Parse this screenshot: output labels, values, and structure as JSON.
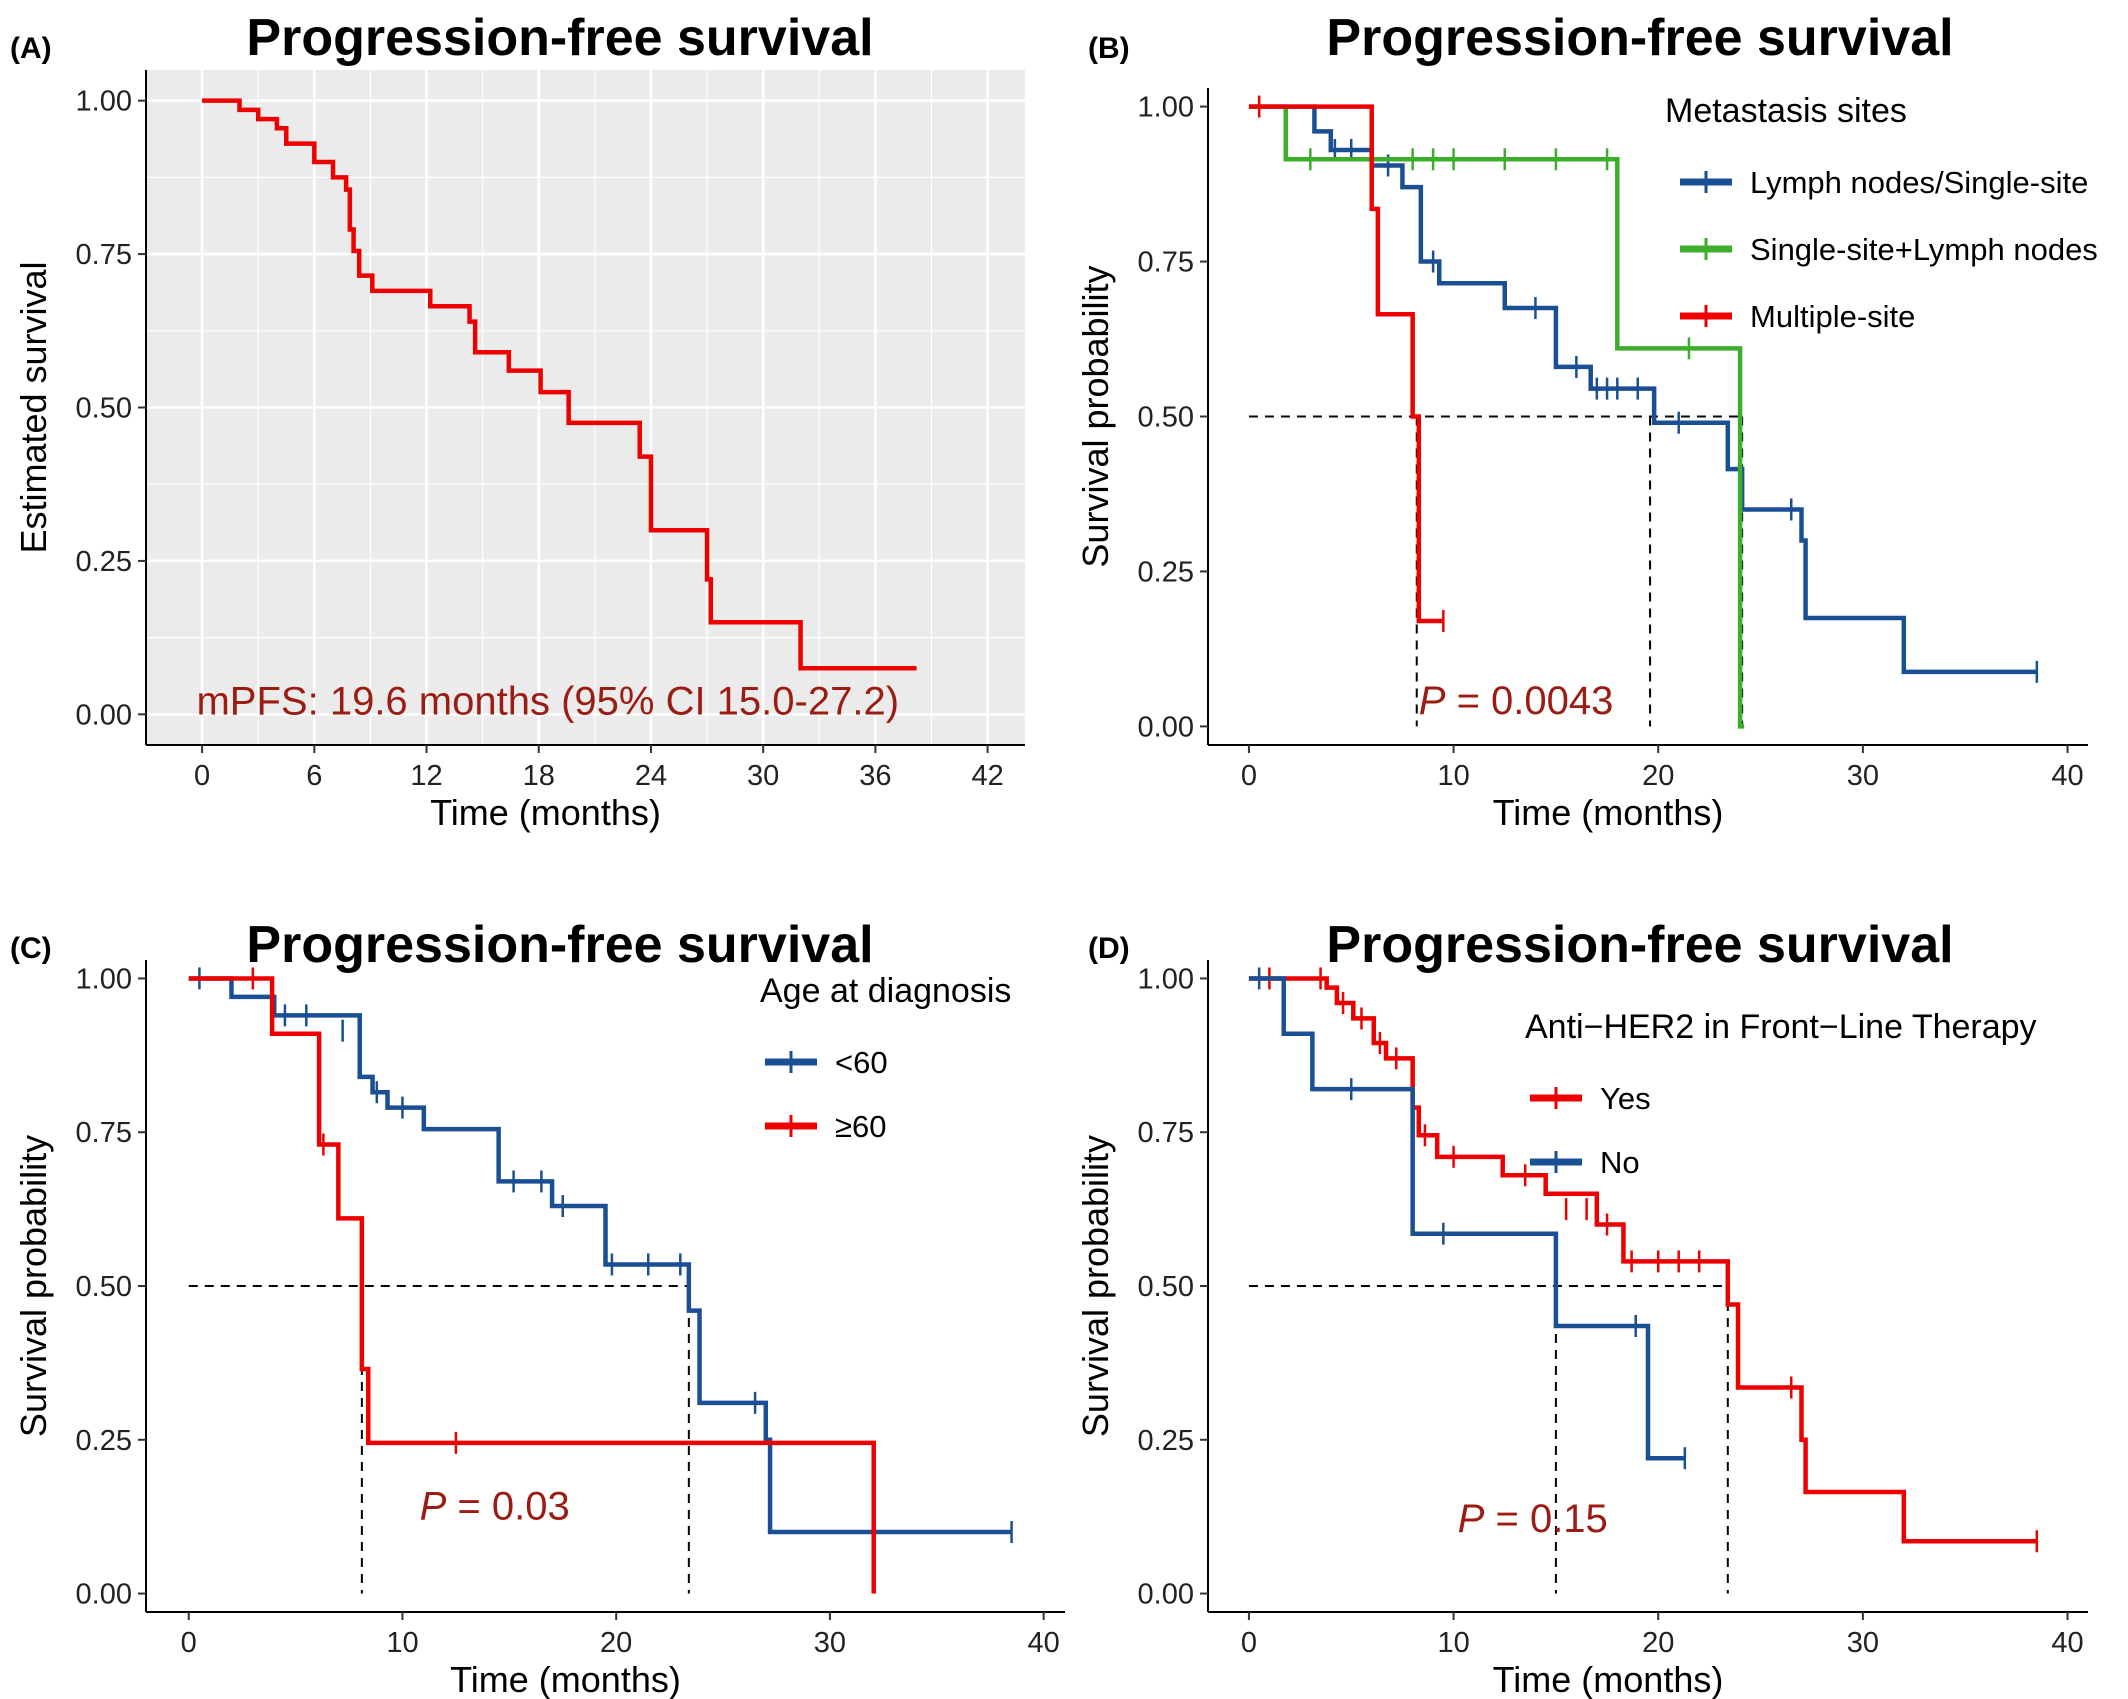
{
  "chart_data": [
    {
      "panel": "(A)",
      "type": "line",
      "title": "Progression-free survival",
      "xlabel": "Time (months)",
      "ylabel": "Estimated survival",
      "xlim": [
        -3,
        44
      ],
      "ylim": [
        -0.05,
        1.05
      ],
      "xticks": [
        0,
        6,
        12,
        18,
        24,
        30,
        36,
        42
      ],
      "xtick_labels": [
        "0",
        "6",
        "12",
        "18",
        "24",
        "30",
        "36",
        "42"
      ],
      "yticks": [
        0,
        0.25,
        0.5,
        0.75,
        1.0
      ],
      "ytick_labels": [
        "0.00",
        "0.25",
        "0.50",
        "0.75",
        "1.00"
      ],
      "grid": true,
      "background": "#ebebeb",
      "annotation": {
        "text": "mPFS: 19.6 months (95% CI 15.0-27.2)",
        "x": -0.3,
        "y": 0.0
      },
      "series": [
        {
          "color": "#ee0000",
          "x": [
            0,
            2,
            3,
            4,
            4.5,
            6,
            7,
            7.7,
            7.9,
            8.1,
            8.4,
            9.1,
            12.2,
            14.3,
            14.6,
            16.4,
            18.1,
            19.6,
            23.4,
            24,
            27,
            27.2,
            32,
            38.2
          ],
          "y": [
            1.0,
            0.985,
            0.97,
            0.955,
            0.93,
            0.9,
            0.875,
            0.855,
            0.79,
            0.755,
            0.715,
            0.69,
            0.665,
            0.64,
            0.59,
            0.56,
            0.525,
            0.475,
            0.42,
            0.3,
            0.22,
            0.15,
            0.075,
            0.075
          ],
          "censor_x": [],
          "censor_y": []
        }
      ]
    },
    {
      "panel": "(B)",
      "type": "line",
      "title": "Progression-free survival",
      "xlabel": "Time (months)",
      "ylabel": "Survival probability",
      "xlim": [
        -2,
        41
      ],
      "ylim": [
        -0.03,
        1.03
      ],
      "xticks": [
        0,
        10,
        20,
        30,
        40
      ],
      "xtick_labels": [
        "0",
        "10",
        "20",
        "30",
        "40"
      ],
      "yticks": [
        0,
        0.25,
        0.5,
        0.75,
        1.0
      ],
      "ytick_labels": [
        "0.00",
        "0.25",
        "0.50",
        "0.75",
        "1.00"
      ],
      "grid": false,
      "legend_title": "Metastasis sites",
      "legend_position": "top-right",
      "annotation": {
        "text_italic": "P",
        "text": " = 0.0043",
        "x": 8.3,
        "y": 0.02
      },
      "median_lines": [
        {
          "x": 8.2,
          "y_from": 0.5,
          "y_to": 0.0
        },
        {
          "x": 19.6,
          "y_from": 0.5,
          "y_to": 0.0
        },
        {
          "x": 24.1,
          "y_from": 0.5,
          "y_to": 0.0
        }
      ],
      "median_hline": {
        "x_from": 0,
        "x_to": 24.1,
        "y": 0.5
      },
      "series": [
        {
          "name": "Lymph nodes/Single-site",
          "color": "#1a4f93",
          "x": [
            0,
            3.2,
            4,
            6,
            7.5,
            8.4,
            9.3,
            12.5,
            15,
            16.7,
            19.8,
            23.4,
            24.1,
            27,
            27.2,
            32,
            38.5
          ],
          "y": [
            1.0,
            0.96,
            0.93,
            0.905,
            0.87,
            0.75,
            0.715,
            0.675,
            0.58,
            0.545,
            0.49,
            0.415,
            0.35,
            0.3,
            0.175,
            0.088,
            0.088
          ],
          "censor_x": [
            4.2,
            5,
            6.8,
            9,
            14,
            16,
            17,
            17.5,
            18,
            19,
            21,
            26.5,
            38.5
          ],
          "censor_y": [
            0.93,
            0.93,
            0.905,
            0.75,
            0.675,
            0.58,
            0.545,
            0.545,
            0.545,
            0.545,
            0.49,
            0.35,
            0.088
          ]
        },
        {
          "name": "Single-site+Lymph nodes",
          "color": "#3dae2b",
          "x": [
            0,
            1.8,
            18,
            24,
            24.2
          ],
          "y": [
            1.0,
            0.915,
            0.61,
            0.0,
            0.0
          ],
          "censor_x": [
            3,
            6,
            8,
            9,
            10,
            12.5,
            15,
            17.5,
            21.5
          ],
          "censor_y": [
            0.915,
            0.915,
            0.915,
            0.915,
            0.915,
            0.915,
            0.915,
            0.915,
            0.61
          ]
        },
        {
          "name": "Multiple-site",
          "color": "#ee0000",
          "x": [
            0,
            6,
            6.3,
            8,
            8.3,
            9.5
          ],
          "y": [
            1.0,
            0.835,
            0.665,
            0.5,
            0.17,
            0.17
          ],
          "censor_x": [
            0.5,
            9.5
          ],
          "censor_y": [
            1.0,
            0.17
          ]
        }
      ]
    },
    {
      "panel": "(C)",
      "type": "line",
      "title": "Progression-free survival",
      "xlabel": "Time (months)",
      "ylabel": "Survival probability",
      "xlim": [
        -2,
        41
      ],
      "ylim": [
        -0.03,
        1.03
      ],
      "xticks": [
        0,
        10,
        20,
        30,
        40
      ],
      "xtick_labels": [
        "0",
        "10",
        "20",
        "30",
        "40"
      ],
      "yticks": [
        0,
        0.25,
        0.5,
        0.75,
        1.0
      ],
      "ytick_labels": [
        "0.00",
        "0.25",
        "0.50",
        "0.75",
        "1.00"
      ],
      "grid": false,
      "legend_title": "Age at diagnosis",
      "legend_position": "top-right",
      "annotation": {
        "text_italic": "P",
        "text": " = 0.03",
        "x": 10.8,
        "y": 0.12
      },
      "median_lines": [
        {
          "x": 8.1,
          "y_from": 0.5,
          "y_to": 0.0
        },
        {
          "x": 23.4,
          "y_from": 0.5,
          "y_to": 0.0
        }
      ],
      "median_hline": {
        "x_from": 0,
        "x_to": 23.4,
        "y": 0.5
      },
      "series": [
        {
          "name": "<60",
          "color": "#1a4f93",
          "x": [
            0,
            2,
            4,
            8,
            8.6,
            9.3,
            11,
            14.5,
            17,
            19.5,
            23.4,
            23.9,
            27,
            27.2,
            38.5
          ],
          "y": [
            1.0,
            0.97,
            0.94,
            0.84,
            0.815,
            0.79,
            0.755,
            0.67,
            0.63,
            0.535,
            0.46,
            0.31,
            0.25,
            0.1,
            0.1
          ],
          "censor_x": [
            0.5,
            4.5,
            5.5,
            7.2,
            8.8,
            10,
            15.2,
            16.5,
            17.5,
            19.8,
            21.5,
            23,
            26.5,
            38.5
          ],
          "censor_y": [
            1.0,
            0.94,
            0.94,
            0.915,
            0.815,
            0.79,
            0.67,
            0.67,
            0.63,
            0.535,
            0.535,
            0.535,
            0.31,
            0.1
          ],
          "x_pre8_flat": 7.5,
          "y_pre8_flat": 0.915
        },
        {
          "name": "≥60",
          "color": "#ee0000",
          "x": [
            0,
            3.9,
            6.1,
            7,
            8.1,
            8.4,
            32,
            32.05
          ],
          "y": [
            1.0,
            0.91,
            0.73,
            0.61,
            0.365,
            0.245,
            0.245,
            0.0
          ],
          "censor_x": [
            3,
            6.3,
            12.5
          ],
          "censor_y": [
            1.0,
            0.73,
            0.245
          ]
        }
      ]
    },
    {
      "panel": "(D)",
      "type": "line",
      "title": "Progression-free survival",
      "xlabel": "Time (months)",
      "ylabel": "Survival probability",
      "xlim": [
        -2,
        41
      ],
      "ylim": [
        -0.03,
        1.03
      ],
      "xticks": [
        0,
        10,
        20,
        30,
        40
      ],
      "xtick_labels": [
        "0",
        "10",
        "20",
        "30",
        "40"
      ],
      "yticks": [
        0,
        0.25,
        0.5,
        0.75,
        1.0
      ],
      "ytick_labels": [
        "0.00",
        "0.25",
        "0.50",
        "0.75",
        "1.00"
      ],
      "grid": false,
      "legend_title": "Anti−HER2 in Front−Line Therapy",
      "legend_position": "top-right",
      "annotation": {
        "text_italic": "P",
        "text": " = 0.15",
        "x": 10.2,
        "y": 0.1
      },
      "median_lines": [
        {
          "x": 15,
          "y_from": 0.5,
          "y_to": 0.0
        },
        {
          "x": 23.4,
          "y_from": 0.5,
          "y_to": 0.0
        }
      ],
      "median_hline": {
        "x_from": 0,
        "x_to": 23.4,
        "y": 0.5
      },
      "series": [
        {
          "name": "Yes",
          "color": "#ee0000",
          "x": [
            0,
            3.8,
            4.3,
            5.1,
            6.1,
            6.7,
            8,
            8.3,
            9.2,
            12.4,
            14.5,
            17,
            18.3,
            23.4,
            23.9,
            27,
            27.2,
            32,
            38.5
          ],
          "y": [
            1.0,
            0.985,
            0.96,
            0.935,
            0.895,
            0.87,
            0.79,
            0.745,
            0.71,
            0.68,
            0.65,
            0.6,
            0.54,
            0.47,
            0.335,
            0.25,
            0.165,
            0.085,
            0.085
          ],
          "censor_x": [
            1,
            3.5,
            4.6,
            5.5,
            6.4,
            7.2,
            8.6,
            10,
            13.5,
            15.5,
            16.5,
            17.5,
            18.7,
            20,
            21,
            22,
            26.5,
            38.5
          ],
          "censor_y": [
            1.0,
            1.0,
            0.96,
            0.935,
            0.895,
            0.87,
            0.745,
            0.71,
            0.68,
            0.625,
            0.625,
            0.6,
            0.54,
            0.54,
            0.54,
            0.54,
            0.335,
            0.085
          ]
        },
        {
          "name": "No",
          "color": "#1a4f93",
          "x": [
            0,
            1.7,
            3.1,
            8,
            15,
            19.5,
            21.3
          ],
          "y": [
            1.0,
            0.91,
            0.82,
            0.585,
            0.435,
            0.22,
            0.22
          ],
          "censor_x": [
            0.5,
            5,
            9.5,
            18.9,
            21.3
          ],
          "censor_y": [
            1.0,
            0.82,
            0.585,
            0.435,
            0.22
          ]
        }
      ]
    }
  ]
}
